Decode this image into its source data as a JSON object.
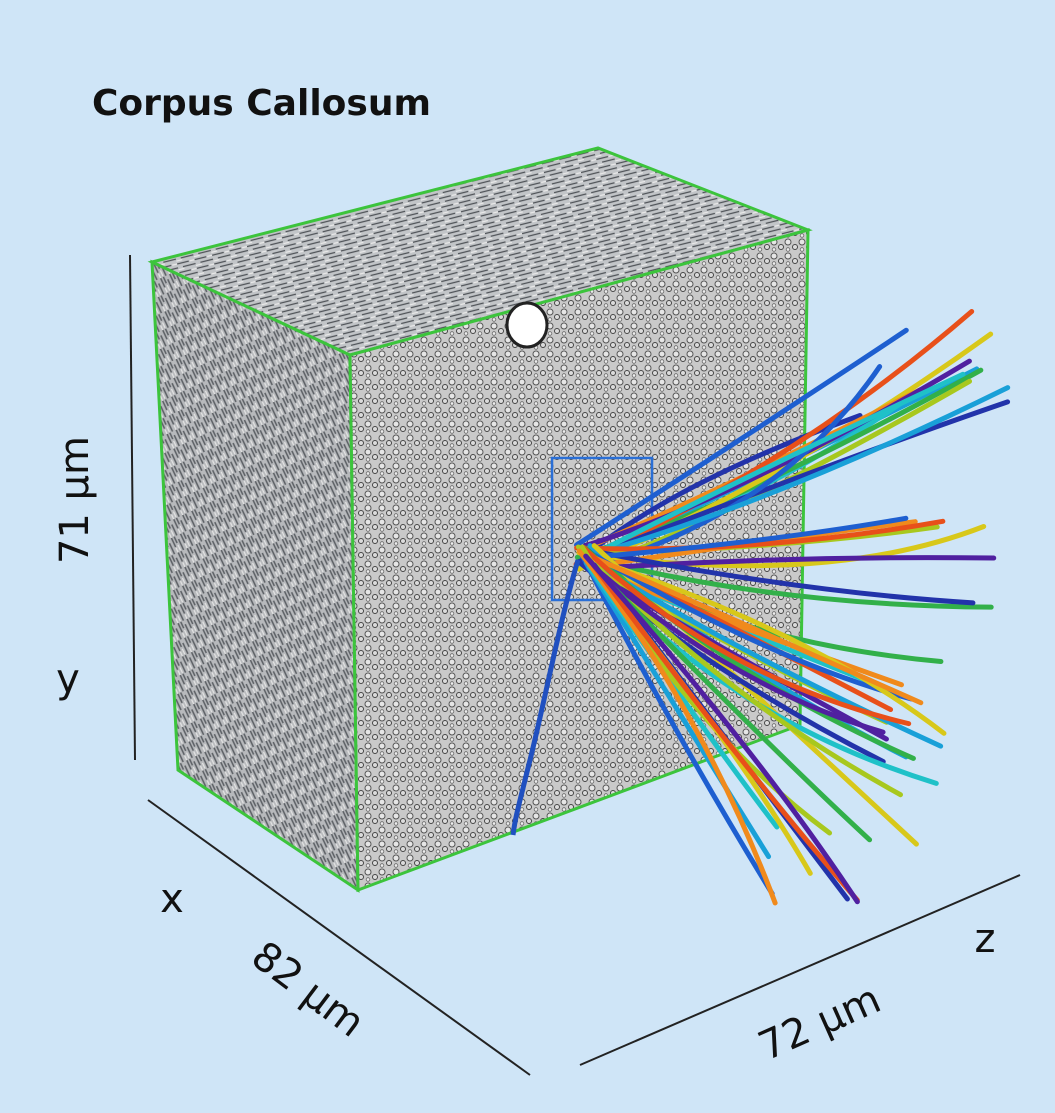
{
  "title": "Corpus Callosum",
  "axes": {
    "y": {
      "label": "y",
      "size": "71 µm"
    },
    "x": {
      "label": "x",
      "size": "82 µm"
    },
    "z": {
      "label": "z",
      "size": "72 µm"
    }
  }
}
